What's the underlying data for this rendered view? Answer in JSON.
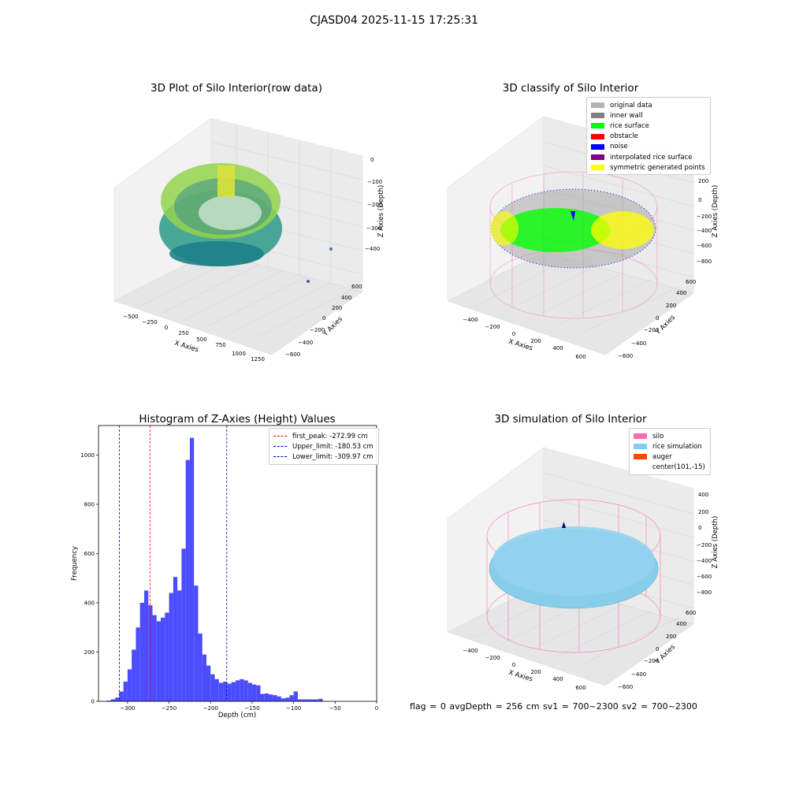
{
  "suptitle": "CJASD04 2025-11-15 17:25:31",
  "footer": "flag = 0     avgDepth = 256 cm  sv1 = 700~2300  sv2 = 700~2300",
  "colors": {
    "hist_bar": "#4c4cff",
    "first_peak": "#ff0000",
    "limits": "#0000cc",
    "original": "#b3b3b3",
    "inner_wall": "#808080",
    "rice_surface": "#00ff00",
    "obstacle": "#ff0000",
    "noise": "#0000ff",
    "interpolated": "#800080",
    "symmetric": "#ffff00",
    "silo": "#ff69b4",
    "rice_sim": "#87ceeb",
    "auger": "#ff4500"
  },
  "chart_data": [
    {
      "type": "scatter",
      "projection": "3d",
      "title": "3D Plot of Silo Interior(row data)",
      "xlabel": "X Axies",
      "ylabel": "Y Axies",
      "zlabel": "Z Axies (Depth)",
      "xticks": [
        "−500",
        "−250",
        "0",
        "250",
        "500",
        "750",
        "1000",
        "1250"
      ],
      "yticks": [
        "−600",
        "−400",
        "−200",
        "0",
        "200",
        "400",
        "600"
      ],
      "zticks": [
        "0",
        "−100",
        "−200",
        "−300",
        "−400"
      ],
      "colormap": "viridis",
      "grid": true
    },
    {
      "type": "scatter",
      "projection": "3d",
      "title": "3D classify of Silo Interior",
      "xlabel": "X Axies",
      "ylabel": "Y Axies",
      "zlabel": "Z Axies (Depth)",
      "xticks": [
        "−400",
        "−200",
        "0",
        "200",
        "400",
        "600"
      ],
      "yticks": [
        "−600",
        "−400",
        "−200",
        "0",
        "200",
        "400",
        "600"
      ],
      "zticks": [
        "200",
        "0",
        "−200",
        "−400",
        "−600",
        "−800"
      ],
      "z_top_partial": "0",
      "legend_position": "upper right",
      "legend": [
        {
          "label": "original data",
          "color": "#b3b3b3"
        },
        {
          "label": "inner wall",
          "color": "#808080"
        },
        {
          "label": "rice surface",
          "color": "#00ff00"
        },
        {
          "label": "obstacle",
          "color": "#ff0000"
        },
        {
          "label": "noise",
          "color": "#0000ff"
        },
        {
          "label": "interpolated rice surface",
          "color": "#800080"
        },
        {
          "label": "symmetric generated points",
          "color": "#ffff00"
        }
      ],
      "grid": true
    },
    {
      "type": "bar",
      "title": "Histogram of Z-Axies (Height) Values",
      "xlabel": "Depth (cm)",
      "ylabel": "Frequency",
      "xlim": [
        -335,
        0
      ],
      "ylim": [
        0,
        1120
      ],
      "xticks": [
        -300,
        -250,
        -200,
        -150,
        -100,
        -50,
        0
      ],
      "yticks": [
        0,
        200,
        400,
        600,
        800,
        1000
      ],
      "bin_start": -325,
      "bin_width": 5,
      "values": [
        3,
        8,
        15,
        40,
        80,
        130,
        210,
        300,
        400,
        450,
        390,
        350,
        325,
        340,
        360,
        440,
        505,
        450,
        620,
        980,
        1070,
        470,
        275,
        190,
        145,
        110,
        90,
        75,
        80,
        72,
        78,
        85,
        90,
        85,
        75,
        68,
        65,
        30,
        32,
        28,
        25,
        20,
        12,
        15,
        25,
        40,
        8,
        8,
        8,
        8,
        8,
        10
      ],
      "lines": [
        {
          "label": "first_peak: -272.99 cm",
          "x": -272.99,
          "color": "#ff0000"
        },
        {
          "label": "Upper_limit: -180.53 cm",
          "x": -180.53,
          "color": "#0000cc"
        },
        {
          "label": "Lower_limit: -309.97 cm",
          "x": -309.97,
          "color": "#0000cc"
        }
      ],
      "legend_position": "upper right"
    },
    {
      "type": "surface",
      "projection": "3d",
      "title": "3D simulation of Silo Interior",
      "xlabel": "X Axies",
      "ylabel": "Y Axies",
      "zlabel": "Z Axies (Depth)",
      "xticks": [
        "−400",
        "−200",
        "0",
        "200",
        "400",
        "600"
      ],
      "yticks": [
        "−600",
        "−400",
        "−200",
        "0",
        "200",
        "400",
        "600"
      ],
      "zticks": [
        "400",
        "200",
        "0",
        "−200",
        "−400",
        "−600",
        "−800"
      ],
      "legend_position": "upper right",
      "legend": [
        {
          "label": "silo",
          "color": "#ff69b4"
        },
        {
          "label": "rice simulation",
          "color": "#87ceeb"
        },
        {
          "label": "auger",
          "color": "#ff4500"
        },
        {
          "label": "center(101,-15)",
          "color": ""
        }
      ],
      "grid": true
    }
  ]
}
